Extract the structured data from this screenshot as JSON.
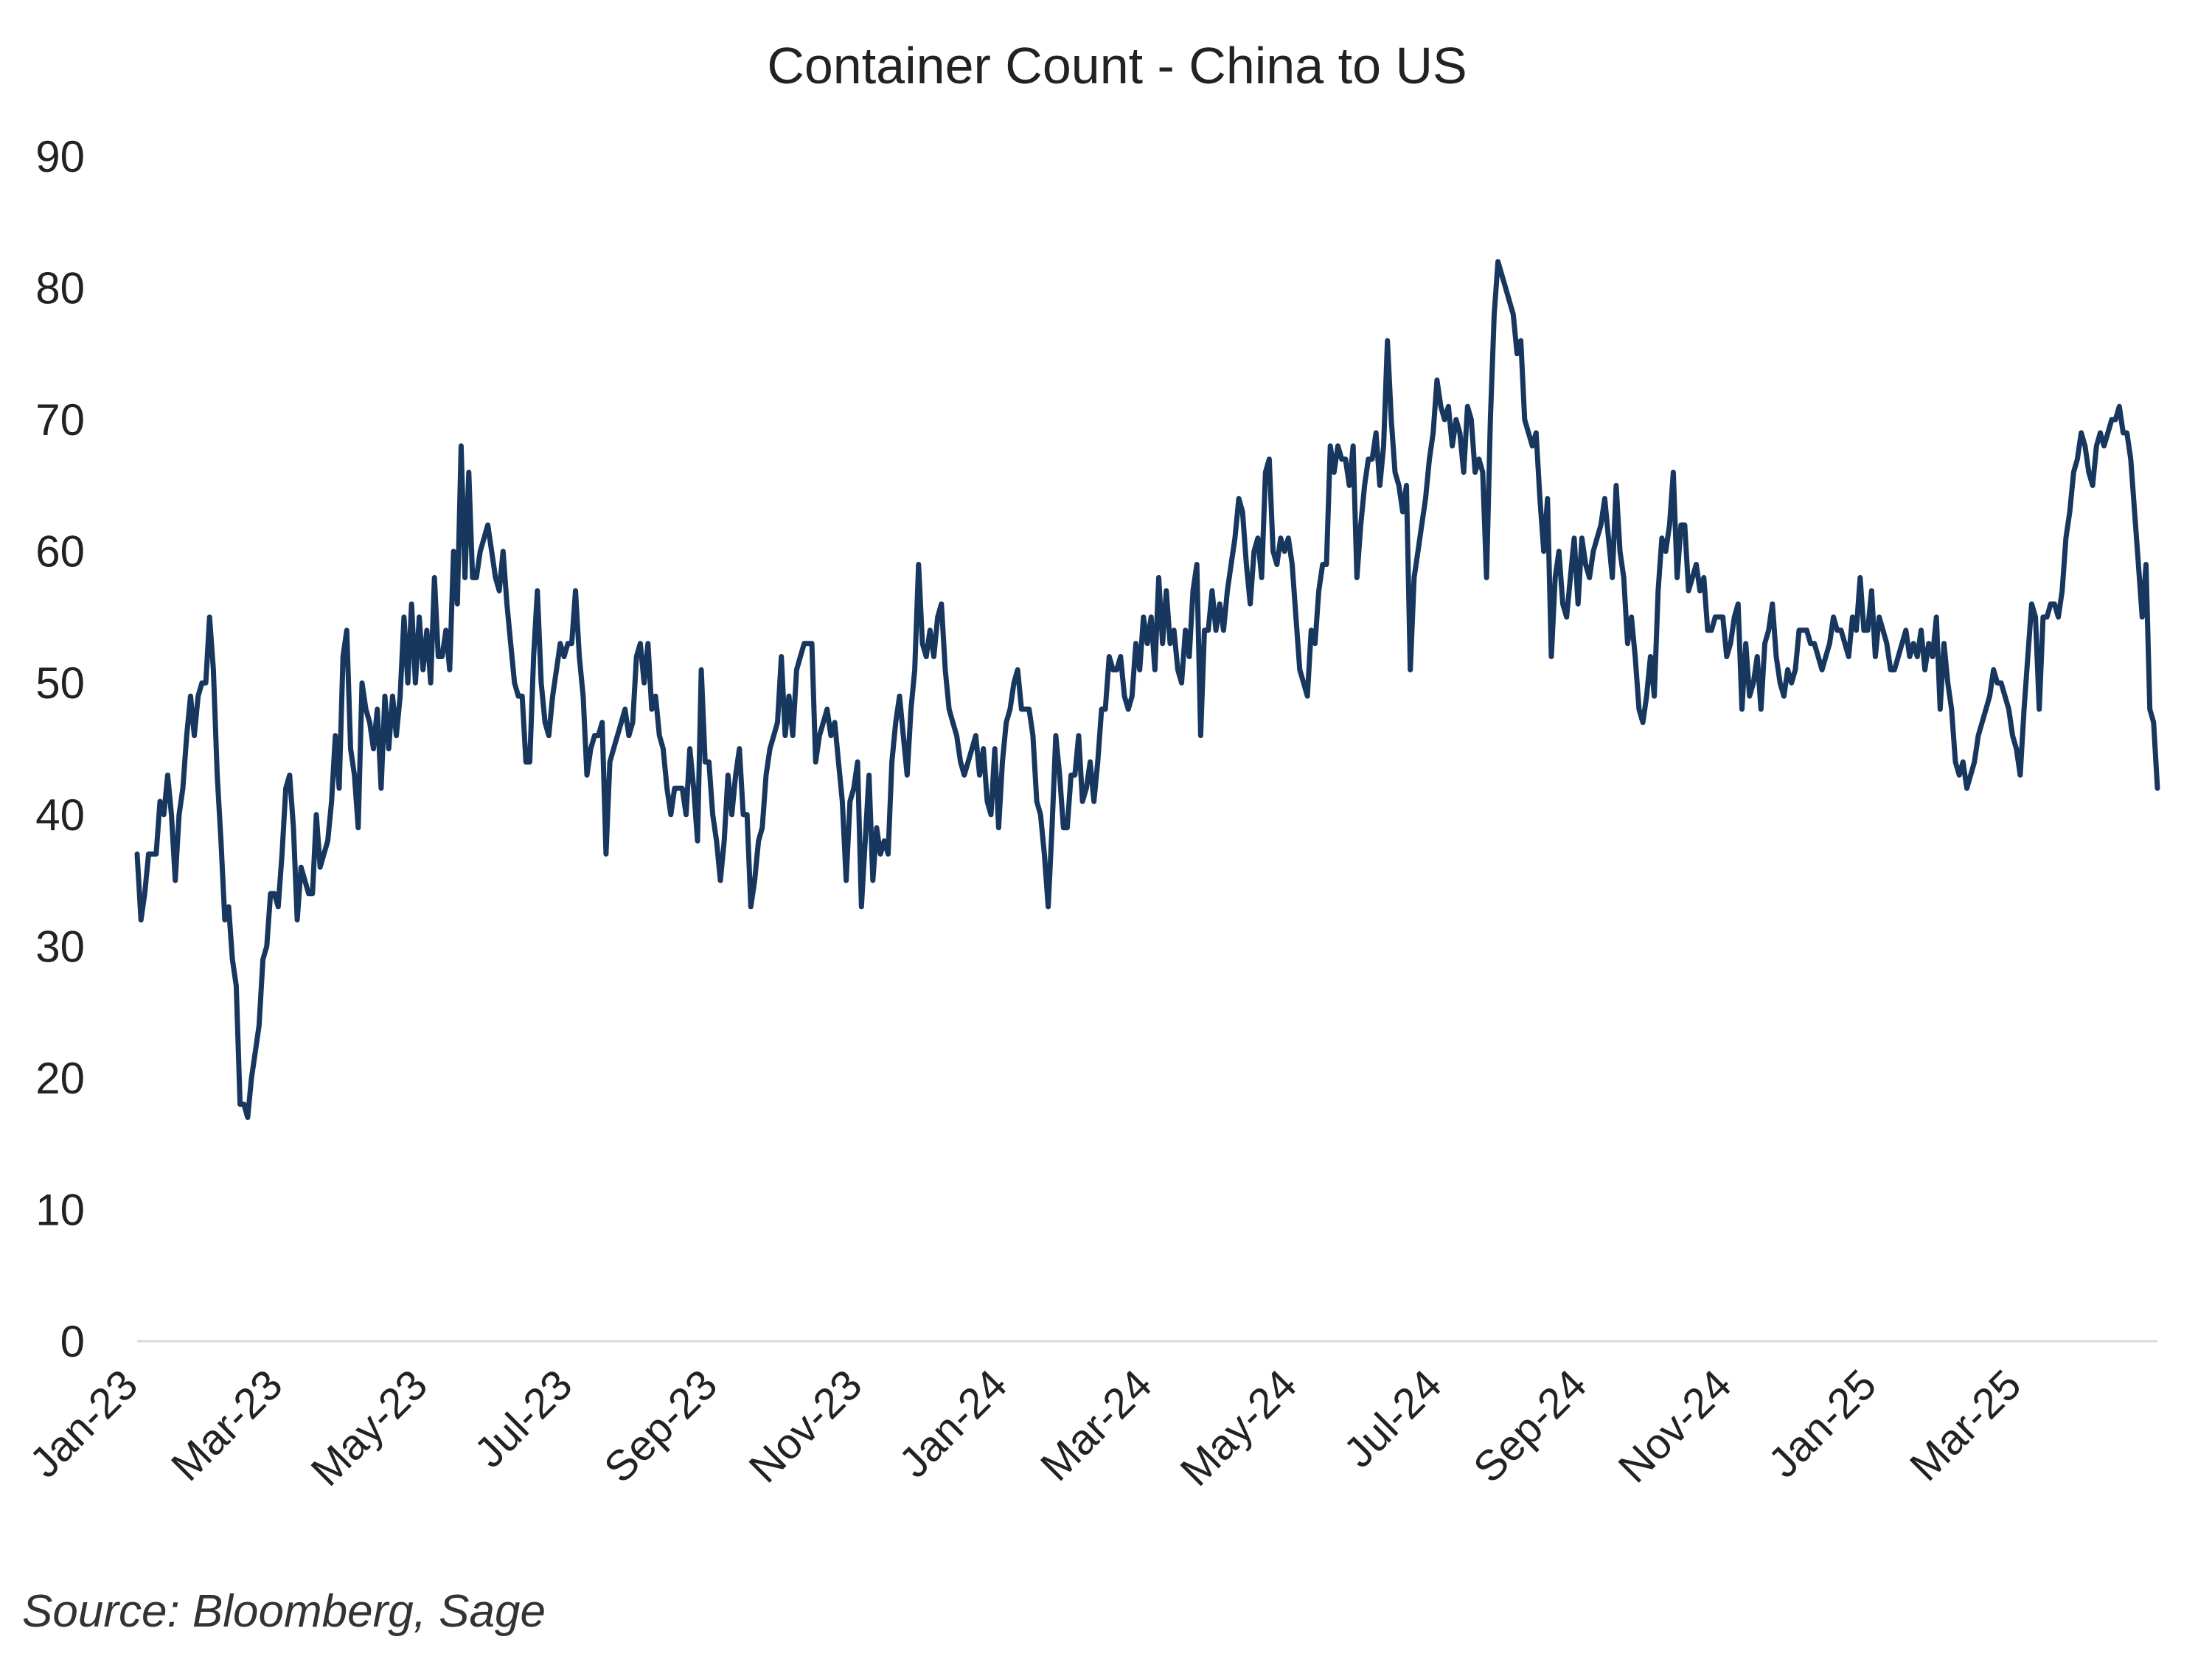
{
  "chart_data": {
    "type": "line",
    "title": "Container Count - China to US",
    "source": "Source: Bloomberg, Sage",
    "xlabel": "",
    "ylabel": "",
    "ylim": [
      0,
      90
    ],
    "yticks": [
      "0",
      "10",
      "20",
      "30",
      "40",
      "50",
      "60",
      "70",
      "80",
      "90"
    ],
    "xticks": [
      "Jan-23",
      "Mar-23",
      "May-23",
      "Jul-23",
      "Sep-23",
      "Nov-23",
      "Jan-24",
      "Mar-24",
      "May-24",
      "Jul-24",
      "Sep-24",
      "Nov-24",
      "Jan-25",
      "Mar-25"
    ],
    "grid": false,
    "line_color": "#17375e",
    "series": [
      {
        "values": [
          37,
          32,
          34,
          37,
          37,
          37,
          41,
          40,
          43,
          40,
          35,
          40,
          42,
          46,
          49,
          46,
          49,
          50,
          50,
          55,
          51,
          43,
          38,
          32,
          33,
          29,
          27,
          18,
          18,
          17,
          20,
          22,
          24,
          29,
          30,
          34,
          34,
          33,
          37,
          42,
          43,
          39,
          32,
          36,
          35,
          34,
          34,
          40,
          36,
          37,
          38,
          41,
          46,
          42,
          52,
          54,
          45,
          43,
          39,
          50,
          48,
          47,
          45,
          48,
          42,
          49,
          45,
          49,
          46,
          49,
          55,
          50,
          56,
          50,
          55,
          51,
          54,
          50,
          58,
          52,
          52,
          54,
          51,
          60,
          56,
          68,
          58,
          66,
          58,
          58,
          60,
          61,
          62,
          60,
          58,
          57,
          60,
          56,
          53,
          50,
          49,
          49,
          44,
          44,
          52,
          57,
          50,
          47,
          46,
          49,
          51,
          53,
          52,
          53,
          53,
          57,
          52,
          49,
          43,
          45,
          46,
          46,
          47,
          37,
          44,
          45,
          46,
          47,
          48,
          46,
          47,
          52,
          53,
          50,
          53,
          48,
          49,
          46,
          45,
          42,
          40,
          42,
          42,
          42,
          40,
          45,
          42,
          38,
          51,
          44,
          44,
          40,
          38,
          35,
          38,
          43,
          40,
          43,
          45,
          40,
          40,
          33,
          35,
          38,
          39,
          43,
          45,
          46,
          47,
          52,
          46,
          49,
          46,
          51,
          52,
          53,
          53,
          53,
          44,
          46,
          47,
          48,
          46,
          47,
          44,
          41,
          35,
          41,
          42,
          44,
          33,
          38,
          43,
          35,
          39,
          37,
          38,
          37,
          44,
          47,
          49,
          46,
          43,
          48,
          51,
          59,
          53,
          52,
          54,
          52,
          55,
          56,
          51,
          48,
          47,
          46,
          44,
          43,
          44,
          45,
          46,
          43,
          45,
          41,
          40,
          45,
          39,
          44,
          47,
          48,
          50,
          51,
          48,
          48,
          48,
          46,
          41,
          40,
          37,
          33,
          39,
          46,
          43,
          39,
          39,
          43,
          43,
          46,
          41,
          42,
          44,
          41,
          44,
          48,
          48,
          52,
          51,
          51,
          52,
          49,
          48,
          49,
          53,
          51,
          55,
          53,
          55,
          51,
          58,
          53,
          57,
          53,
          54,
          51,
          50,
          54,
          52,
          57,
          59,
          46,
          54,
          54,
          57,
          54,
          56,
          54,
          57,
          59,
          61,
          64,
          63,
          59,
          56,
          60,
          61,
          58,
          66,
          67,
          60,
          59,
          61,
          60,
          61,
          59,
          55,
          51,
          50,
          49,
          54,
          53,
          57,
          59,
          59,
          68,
          66,
          68,
          67,
          67,
          65,
          68,
          58,
          62,
          65,
          67,
          67,
          69,
          65,
          68,
          76,
          70,
          66,
          65,
          63,
          65,
          51,
          58,
          60,
          62,
          64,
          67,
          69,
          73,
          71,
          70,
          71,
          68,
          70,
          69,
          66,
          71,
          70,
          66,
          67,
          66,
          58,
          70,
          78,
          82,
          81,
          80,
          79,
          78,
          75,
          76,
          70,
          69,
          68,
          69,
          64,
          60,
          64,
          52,
          58,
          60,
          56,
          55,
          58,
          61,
          56,
          61,
          59,
          58,
          60,
          61,
          62,
          64,
          61,
          58,
          65,
          60,
          58,
          53,
          55,
          52,
          48,
          47,
          49,
          52,
          49,
          57,
          61,
          60,
          62,
          66,
          58,
          62,
          62,
          57,
          58,
          59,
          57,
          58,
          54,
          54,
          55,
          55,
          55,
          52,
          53,
          55,
          56,
          48,
          53,
          49,
          50,
          52,
          48,
          53,
          54,
          56,
          52,
          50,
          49,
          51,
          50,
          51,
          54,
          54,
          54,
          53,
          53,
          52,
          51,
          52,
          53,
          55,
          54,
          54,
          53,
          52,
          55,
          54,
          58,
          54,
          54,
          57,
          52,
          55,
          54,
          53,
          51,
          51,
          52,
          53,
          54,
          52,
          53,
          52,
          54,
          51,
          53,
          52,
          55,
          48,
          53,
          50,
          48,
          44,
          43,
          44,
          42,
          43,
          44,
          46,
          47,
          48,
          49,
          51,
          50,
          50,
          49,
          48,
          46,
          45,
          43,
          48,
          52,
          56,
          55,
          48,
          55,
          55,
          56,
          56,
          55,
          57,
          61,
          63,
          66,
          67,
          69,
          68,
          66,
          65,
          68,
          69,
          68,
          69,
          70,
          70,
          71,
          69,
          69,
          67,
          63,
          59,
          55,
          59,
          48,
          47,
          42
        ]
      }
    ]
  }
}
